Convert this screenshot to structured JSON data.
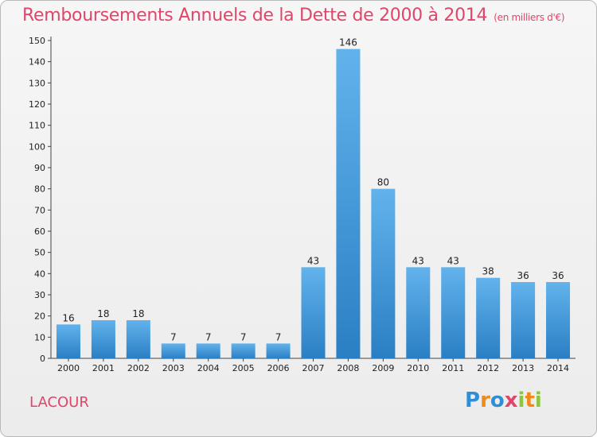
{
  "header": {
    "title": "Remboursements Annuels de la Dette de 2000 à 2014",
    "unit": "(en milliers d'€)"
  },
  "commune": "LACOUR",
  "logo": {
    "text": "Proxiti",
    "letters": [
      {
        "ch": "P",
        "color": "#2f8fd6"
      },
      {
        "ch": "r",
        "color": "#f08a1c"
      },
      {
        "ch": "o",
        "color": "#2f8fd6"
      },
      {
        "ch": "x",
        "color": "#e0456a"
      },
      {
        "ch": "i",
        "color": "#8cc63f"
      },
      {
        "ch": "t",
        "color": "#f08a1c"
      },
      {
        "ch": "i",
        "color": "#8cc63f"
      }
    ]
  },
  "colors": {
    "bar_top": "#62b3ec",
    "bar_bottom": "#2a7fc4",
    "title": "#e0456a"
  },
  "chart_data": {
    "type": "bar",
    "title": "Remboursements Annuels de la Dette de 2000 à 2014",
    "xlabel": "",
    "ylabel": "",
    "categories": [
      "2000",
      "2001",
      "2002",
      "2003",
      "2004",
      "2005",
      "2006",
      "2007",
      "2008",
      "2009",
      "2010",
      "2011",
      "2012",
      "2013",
      "2014"
    ],
    "values": [
      16,
      18,
      18,
      7,
      7,
      7,
      7,
      43,
      146,
      80,
      43,
      43,
      38,
      36,
      36
    ],
    "ylim": [
      0,
      150
    ],
    "yticks": [
      0,
      10,
      20,
      30,
      40,
      50,
      60,
      70,
      80,
      90,
      100,
      110,
      120,
      130,
      140,
      150
    ],
    "grid": false,
    "legend": "none"
  }
}
